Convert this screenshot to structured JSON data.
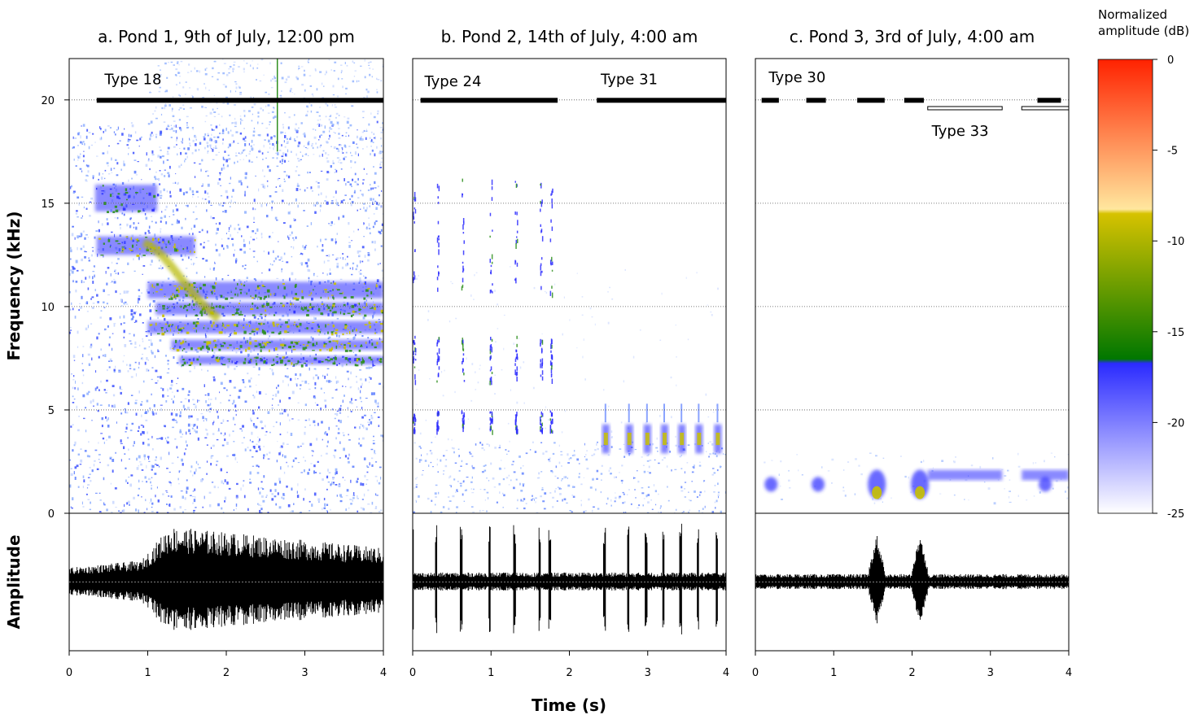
{
  "chart_data": {
    "type": "heatmap",
    "panels": [
      {
        "title": "a. Pond 1, 9th of July, 12:00 pm",
        "types": [
          {
            "label": "Type 18",
            "segments": [
              [
                0.35,
                4.0
              ]
            ],
            "style": "filled",
            "freq": 20.0
          }
        ],
        "blobs": [
          {
            "t": [
              0.33,
              1.12
            ],
            "f": [
              14.6,
              15.9
            ],
            "a": -16
          },
          {
            "t": [
              0.35,
              1.6
            ],
            "f": [
              12.5,
              13.4
            ],
            "a": -12
          },
          {
            "t": [
              1.0,
              4.0
            ],
            "f": [
              10.4,
              11.2
            ],
            "a": -13
          },
          {
            "t": [
              1.1,
              4.0
            ],
            "f": [
              9.6,
              10.2
            ],
            "a": -14
          },
          {
            "t": [
              1.0,
              4.0
            ],
            "f": [
              8.7,
              9.3
            ],
            "a": -12
          },
          {
            "t": [
              1.3,
              4.0
            ],
            "f": [
              7.9,
              8.4
            ],
            "a": -13
          },
          {
            "t": [
              1.4,
              4.0
            ],
            "f": [
              7.2,
              7.6
            ],
            "a": -15
          }
        ]
      },
      {
        "title": "b. Pond 2, 14th of July, 4:00 am",
        "types": [
          {
            "label": "Type 24",
            "segments": [
              [
                0.1,
                1.85
              ]
            ],
            "style": "filled",
            "freq": 20.0
          },
          {
            "label": "Type 31",
            "segments": [
              [
                2.35,
                4.0
              ]
            ],
            "style": "filled",
            "freq": 20.0
          }
        ],
        "pulses": [
          0.0,
          0.3,
          0.62,
          0.98,
          1.3,
          1.62,
          1.75
        ],
        "notes": [
          2.45,
          2.75,
          2.98,
          3.2,
          3.42,
          3.64,
          3.88
        ]
      },
      {
        "title": "c. Pond 3, 3rd of July, 4:00 am",
        "types": [
          {
            "label": "Type 30",
            "segments": [
              [
                0.08,
                0.3
              ],
              [
                0.65,
                0.9
              ],
              [
                1.3,
                1.65
              ],
              [
                1.9,
                2.15
              ],
              [
                3.6,
                3.9
              ]
            ],
            "style": "filled",
            "freq": 20.0
          },
          {
            "label": "Type 33",
            "segments": [
              [
                2.2,
                3.15
              ],
              [
                3.4,
                4.0
              ]
            ],
            "style": "open",
            "freq": 19.6
          }
        ],
        "calls": [
          0.2,
          0.8,
          1.55,
          2.1,
          3.7
        ]
      }
    ],
    "x": {
      "label": "Time (s)",
      "range": [
        0,
        4
      ],
      "ticks": [
        0,
        1,
        2,
        3,
        4
      ]
    },
    "y": {
      "label": "Frequency (kHz)",
      "range": [
        0,
        22
      ],
      "ticks": [
        0,
        5,
        10,
        15,
        20
      ],
      "gridlines": [
        5,
        10,
        15,
        20
      ]
    },
    "amplitude_label": "Amplitude",
    "colorbar": {
      "title": "Normalized amplitude (dB)",
      "range": [
        -25,
        0
      ],
      "ticks": [
        0,
        -5,
        -10,
        -15,
        -20,
        -25
      ],
      "bands": [
        {
          "from": -25,
          "to": -16.5,
          "colors": [
            "#ffffff",
            "#2b2bff"
          ]
        },
        {
          "from": -16.5,
          "to": -8.5,
          "colors": [
            "#007700",
            "#d6c200"
          ]
        },
        {
          "from": -8.5,
          "to": 0,
          "colors": [
            "#ffe79e",
            "#ff2200"
          ]
        }
      ]
    }
  }
}
